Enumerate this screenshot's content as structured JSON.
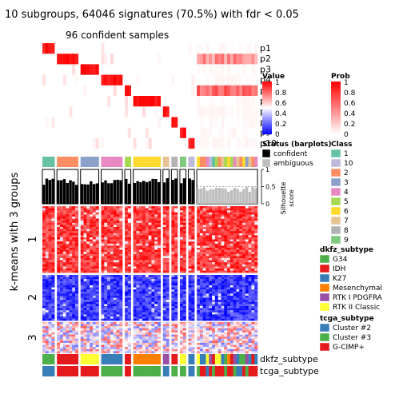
{
  "header": {
    "title": "10 subgroups, 64046 signatures (70.5%) with fdr < 0.05",
    "subtitle": "96 confident samples"
  },
  "row_title": "k-means with 3 groups",
  "chart_data": {
    "type": "heatmap",
    "prob_rows": [
      "p1",
      "p2",
      "p3",
      "p4",
      "p5",
      "p6",
      "p7",
      "p8",
      "p9",
      "p10"
    ],
    "row_splits": [
      "1",
      "2",
      "3"
    ],
    "bottom_annotations": [
      "dkfz_subtype",
      "tcga_subtype"
    ],
    "silhouette": {
      "axis_title": "Silhouette\nscore",
      "ticks": [
        "1",
        "0.5",
        "0"
      ],
      "ylim": [
        0,
        1
      ]
    },
    "column_groups": [
      {
        "class": "1",
        "samples": 4
      },
      {
        "class": "2",
        "samples": 7
      },
      {
        "class": "3",
        "samples": 6
      },
      {
        "class": "4",
        "samples": 7
      },
      {
        "class": "5",
        "samples": 2
      },
      {
        "class": "6",
        "samples": 9
      },
      {
        "class": "7",
        "samples": 2
      },
      {
        "class": "8",
        "samples": 2
      },
      {
        "class": "9",
        "samples": 2
      },
      {
        "class": "10",
        "samples": 2
      },
      {
        "class": "mixed",
        "samples": 20
      }
    ]
  },
  "legends": {
    "prob": {
      "title": "Prob",
      "labels": [
        "1",
        "0.8",
        "0.6",
        "0.4",
        "0.2",
        "0"
      ],
      "colors": [
        "#ff0000",
        "#ffffff"
      ]
    },
    "value": {
      "title": "Value",
      "labels": [
        "1",
        "0.8",
        "0.6",
        "0.4",
        "0.2",
        "0"
      ],
      "colors": [
        "#ff0000",
        "#ffffff",
        "#0000ff"
      ]
    },
    "status": {
      "title": "Status (barplots)",
      "items": [
        {
          "label": "confident",
          "color": "#000000"
        },
        {
          "label": "ambiguous",
          "color": "#bebebe"
        }
      ]
    },
    "class": {
      "title": "Class",
      "items": [
        {
          "label": "1",
          "color": "#66c2a5"
        },
        {
          "label": "10",
          "color": "#bebada"
        },
        {
          "label": "2",
          "color": "#fc8d62"
        },
        {
          "label": "3",
          "color": "#8da0cb"
        },
        {
          "label": "4",
          "color": "#e78ac3"
        },
        {
          "label": "5",
          "color": "#a6d854"
        },
        {
          "label": "6",
          "color": "#ffd92f"
        },
        {
          "label": "7",
          "color": "#e5c494"
        },
        {
          "label": "8",
          "color": "#b3b3b3"
        },
        {
          "label": "9",
          "color": "#7fc97f"
        }
      ]
    },
    "dkfz_subtype": {
      "title": "dkfz_subtype",
      "items": [
        {
          "label": "G34",
          "color": "#4daf4a"
        },
        {
          "label": "IDH",
          "color": "#e41a1c"
        },
        {
          "label": "K27",
          "color": "#377eb8"
        },
        {
          "label": "Mesenchymal",
          "color": "#ff7f00"
        },
        {
          "label": "RTK I PDGFRA",
          "color": "#984ea3"
        },
        {
          "label": "RTK II Classic",
          "color": "#ffff33"
        }
      ]
    },
    "tcga_subtype": {
      "title": "tcga_subtype",
      "items": [
        {
          "label": "Cluster #2",
          "color": "#377eb8"
        },
        {
          "label": "Cluster #3",
          "color": "#4daf4a"
        },
        {
          "label": "G-CIMP+",
          "color": "#e41a1c"
        }
      ]
    }
  }
}
